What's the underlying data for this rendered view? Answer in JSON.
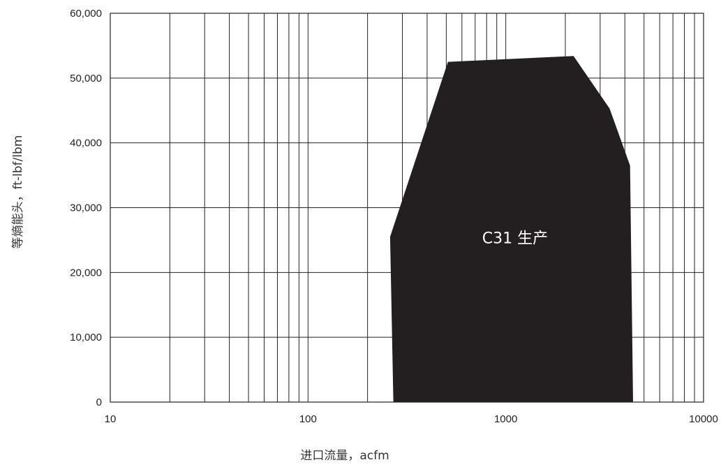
{
  "chart_data": {
    "type": "area",
    "title": "",
    "xlabel": "进口流量，acfm",
    "ylabel": "等熵能头，ft-lbf/lbm",
    "x_scale": "log",
    "xlim": [
      10,
      10000
    ],
    "ylim": [
      0,
      60000
    ],
    "x_ticks": [
      10,
      100,
      1000,
      10000
    ],
    "x_tick_labels": [
      "10",
      "100",
      "1000",
      "10000"
    ],
    "y_ticks": [
      0,
      10000,
      20000,
      30000,
      40000,
      50000,
      60000
    ],
    "y_tick_labels": [
      "0",
      "10,000",
      "20,000",
      "30,000",
      "40,000",
      "50,000",
      "60,000"
    ],
    "grid": true,
    "fill_color": "#231f20",
    "region": {
      "label": "C31 生产",
      "points": [
        {
          "x": 270,
          "y": 0
        },
        {
          "x": 260,
          "y": 25500
        },
        {
          "x": 510,
          "y": 52500
        },
        {
          "x": 2200,
          "y": 53400
        },
        {
          "x": 3350,
          "y": 45300
        },
        {
          "x": 4250,
          "y": 36500
        },
        {
          "x": 4400,
          "y": 0
        }
      ]
    }
  }
}
